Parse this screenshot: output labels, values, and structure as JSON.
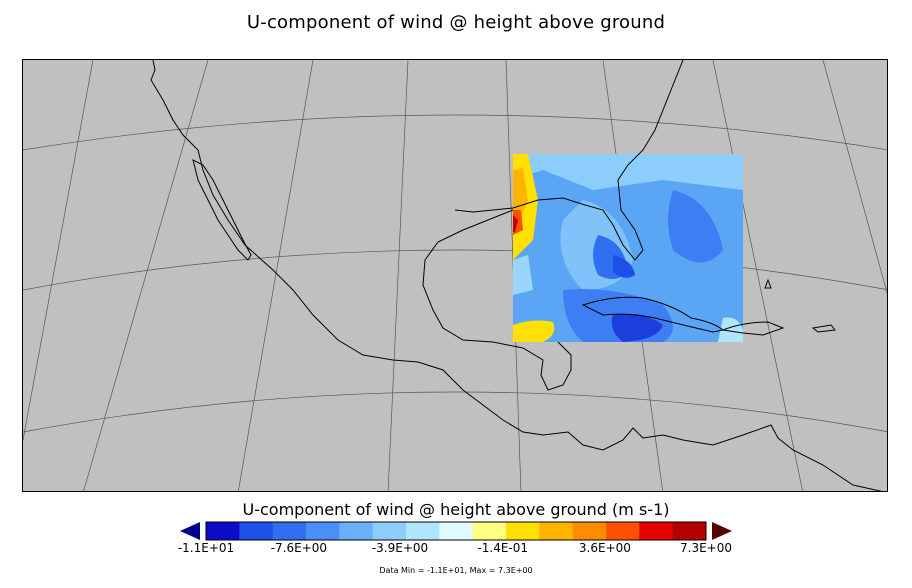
{
  "title": "U-component of wind @ height above ground",
  "colorbar": {
    "title": "U-component of wind @ height above ground (m s-1)",
    "tick_labels": [
      "-1.1E+01",
      "-7.6E+00",
      "-3.9E+00",
      "-1.4E-01",
      "3.6E+00",
      "7.3E+00"
    ],
    "tick_values": [
      -11.0,
      -7.6,
      -3.9,
      -0.14,
      3.6,
      7.3
    ],
    "min": -11.0,
    "max": 7.3,
    "colors": [
      "#0b0bc8",
      "#1e4fe6",
      "#2f6ff0",
      "#4a8ff5",
      "#6ab0f8",
      "#8ccdfb",
      "#b0e6fd",
      "#e0faff",
      "#ffff80",
      "#ffe000",
      "#ffb400",
      "#ff8c00",
      "#ff5000",
      "#e60000",
      "#b40000"
    ],
    "under_color": "#00008b",
    "over_color": "#550000",
    "data_range_text": "Data Min = -1.1E+01, Max = 7.3E+00"
  },
  "map": {
    "background": "#c0c0c0",
    "coastline_color": "#000000",
    "graticule_color": "#555555"
  }
}
